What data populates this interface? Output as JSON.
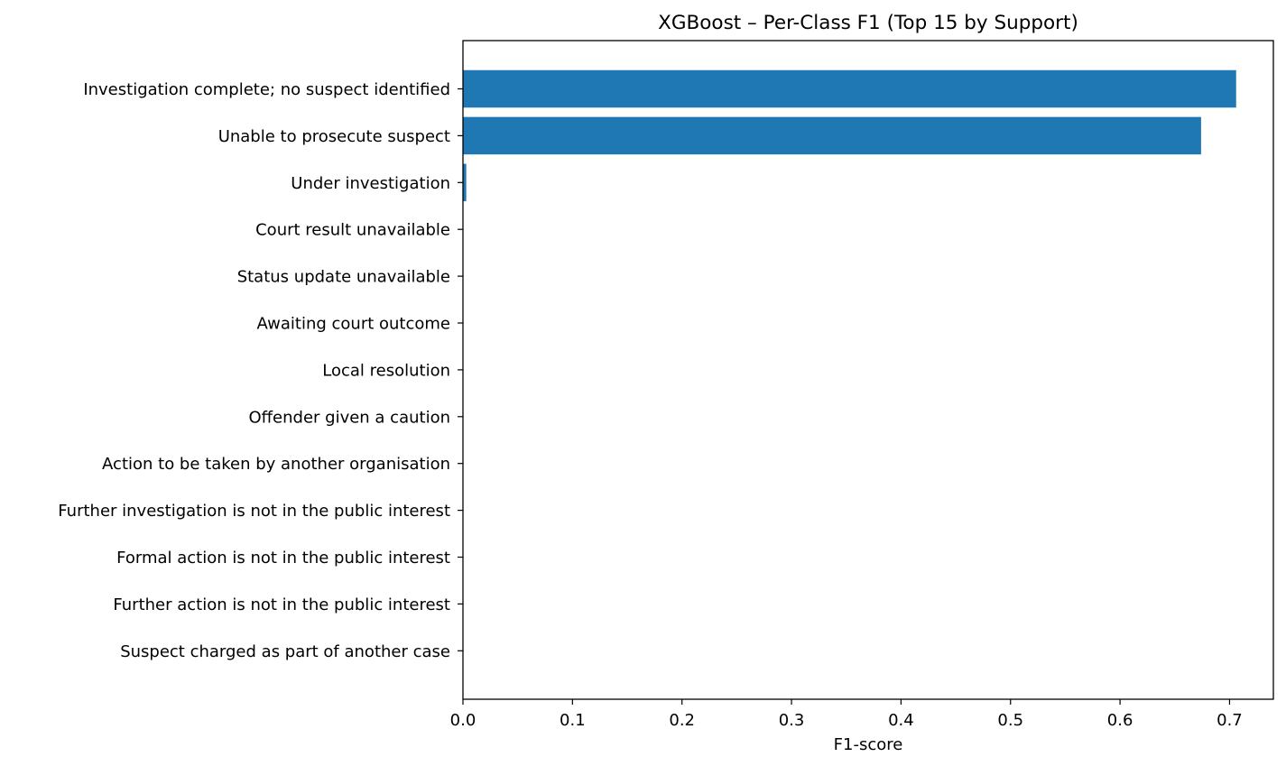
{
  "chart_data": {
    "type": "bar",
    "orientation": "horizontal",
    "title": "XGBoost – Per-Class F1 (Top 15 by Support)",
    "xlabel": "F1-score",
    "ylabel": "",
    "xlim": [
      0,
      0.74
    ],
    "x_ticks": [
      "0.0",
      "0.1",
      "0.2",
      "0.3",
      "0.4",
      "0.5",
      "0.6",
      "0.7"
    ],
    "categories": [
      "Investigation complete; no suspect identified",
      "Unable to prosecute suspect",
      "Under investigation",
      "Court result unavailable",
      "Status update unavailable",
      "Awaiting court outcome",
      "Local resolution",
      "Offender given a caution",
      "Action to be taken by another organisation",
      "Further investigation is not in the public interest",
      "Formal action is not in the public interest",
      "Further action is not in the public interest",
      "Suspect charged as part of another case"
    ],
    "values": [
      0.706,
      0.674,
      0.003,
      0,
      0,
      0,
      0,
      0,
      0,
      0,
      0,
      0,
      0
    ],
    "bar_color": "#1f77b4",
    "grid": false,
    "legend": false
  }
}
